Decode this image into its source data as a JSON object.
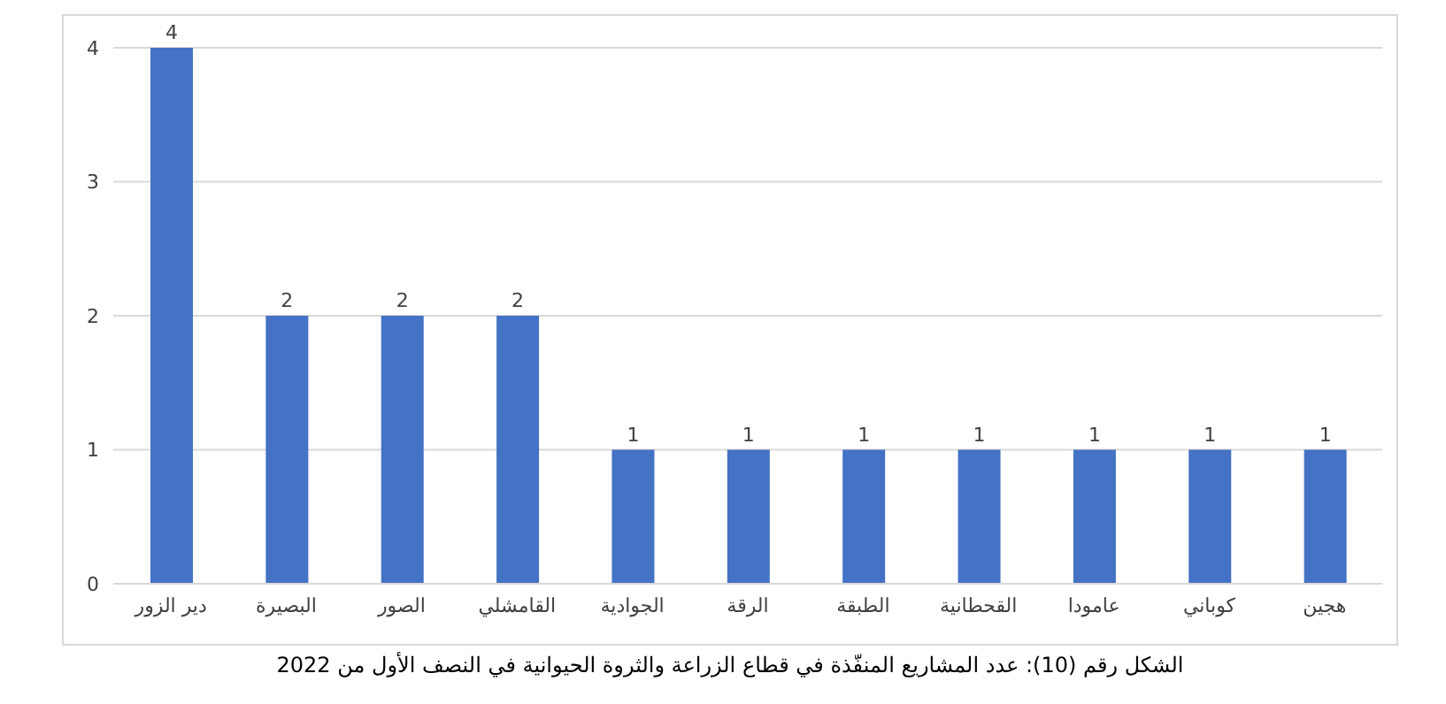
{
  "chart_data": {
    "type": "bar",
    "categories": [
      "دير الزور",
      "البصيرة",
      "الصور",
      "القامشلي",
      "الجوادية",
      "الرقة",
      "الطبقة",
      "القحطانية",
      "عامودا",
      "كوباني",
      "هجين"
    ],
    "values": [
      4,
      2,
      2,
      2,
      1,
      1,
      1,
      1,
      1,
      1,
      1
    ],
    "color": "#4472c4",
    "ylim": [
      0,
      4
    ],
    "yticks": [
      0,
      1,
      2,
      3,
      4
    ],
    "grid": "y",
    "data_labels": true,
    "annotations": [
      "الشكل رقم (10): عدد المشاريع المنفّذة في قطاع الزراعة والثروة الحيوانية في النصف الأول من 2022"
    ]
  }
}
